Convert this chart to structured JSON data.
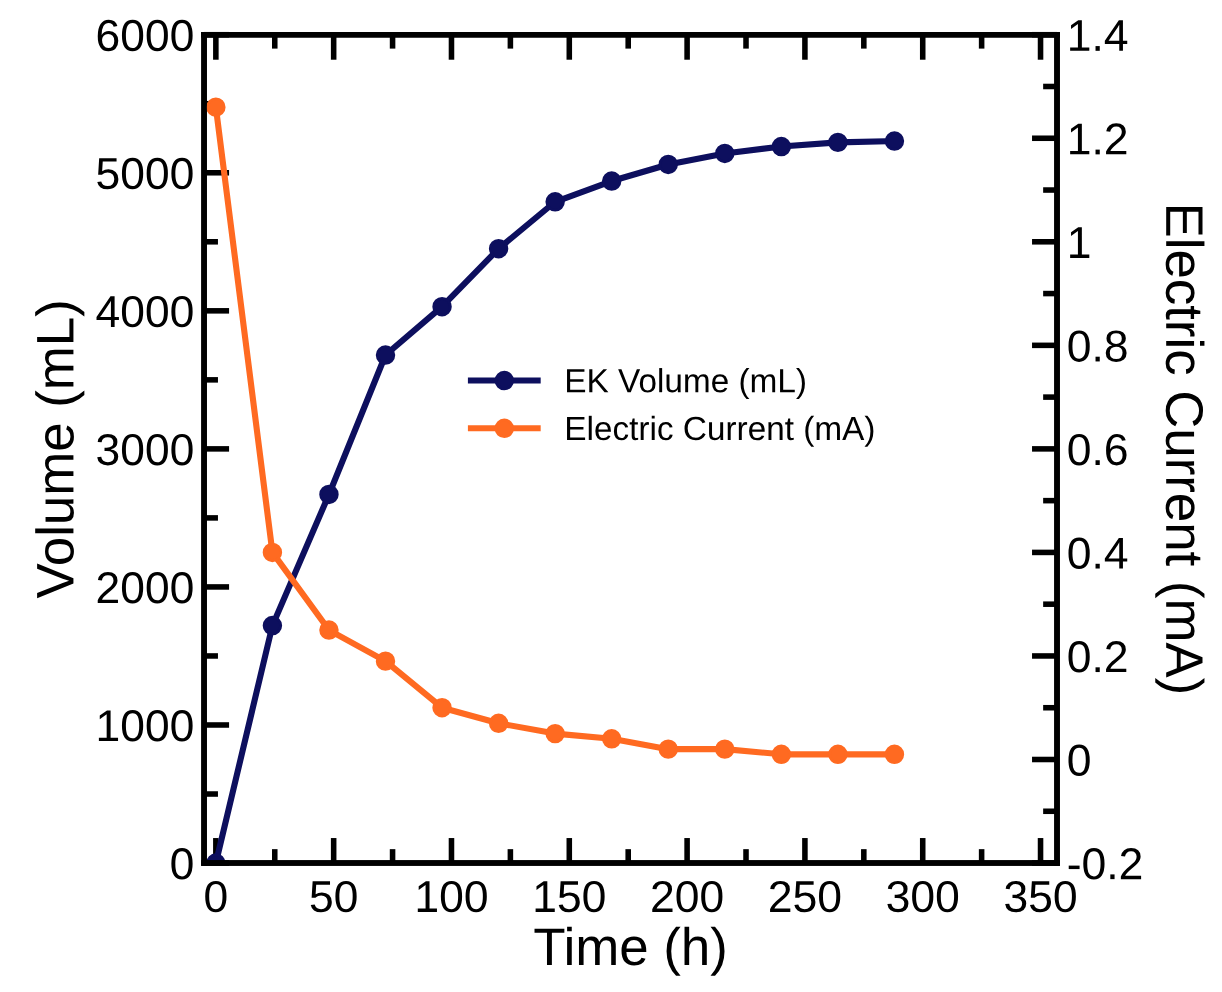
{
  "chart_data": {
    "type": "line",
    "xlabel": "Time (h)",
    "ylabel": "Volume (mL)",
    "y2label": "Electric Current (mA)",
    "x": [
      0,
      24,
      48,
      72,
      96,
      120,
      144,
      168,
      192,
      216,
      240,
      264,
      288
    ],
    "series": [
      {
        "name": "EK Volume (mL)",
        "color": "#0d0f5e",
        "values": [
          0,
          1720,
          2670,
          3680,
          4030,
          4450,
          4790,
          4940,
          5060,
          5140,
          5190,
          5220,
          5230
        ]
      },
      {
        "name": "Electric Current (mA)",
        "color": "#ff6a21",
        "axis": "y2",
        "values": [
          1.26,
          0.4,
          0.25,
          0.19,
          0.1,
          0.07,
          0.05,
          0.04,
          0.02,
          0.02,
          0.01,
          0.01,
          0.01
        ]
      }
    ],
    "xlim": [
      -5,
      357
    ],
    "xticks": [
      0,
      50,
      100,
      150,
      200,
      250,
      300,
      350
    ],
    "ylim": [
      0,
      6000
    ],
    "yticks": [
      0,
      1000,
      2000,
      3000,
      4000,
      5000,
      6000
    ],
    "y2lim": [
      -0.2,
      1.4
    ],
    "y2ticks": [
      -0.2,
      0,
      0.2,
      0.4,
      0.6,
      0.8,
      1,
      1.2,
      1.4
    ],
    "marker": "circle",
    "line_style": "solid",
    "legend": "center",
    "grid": false
  }
}
